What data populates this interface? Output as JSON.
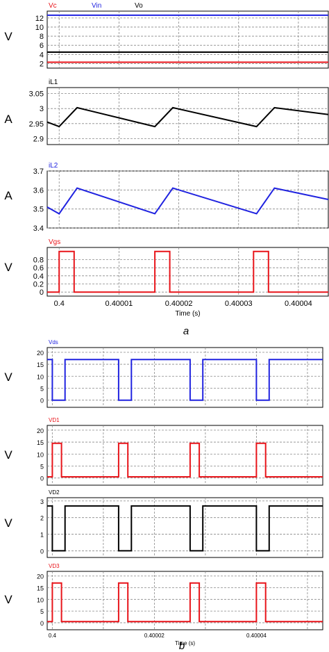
{
  "figures": [
    {
      "caption": "a"
    },
    {
      "caption": "b"
    }
  ],
  "chart_data": [
    {
      "type": "line",
      "figure": "a",
      "unit": "V",
      "xlim": [
        0.399998,
        0.400045
      ],
      "ylim": [
        1,
        13.5
      ],
      "yticks": [
        "2",
        "4",
        "6",
        "8",
        "10",
        "12"
      ],
      "series": [
        {
          "name": "Vc",
          "color": "#e8141a",
          "x": [
            0.399998,
            0.400045
          ],
          "y": [
            2.3,
            2.3
          ]
        },
        {
          "name": "Vin",
          "color": "#2023e0",
          "x": [
            0.399998,
            0.400045
          ],
          "y": [
            12.6,
            12.6
          ]
        },
        {
          "name": "Vo",
          "color": "#000000",
          "x": [
            0.399998,
            0.400045
          ],
          "y": [
            4.5,
            4.5
          ]
        }
      ]
    },
    {
      "type": "line",
      "figure": "a",
      "unit": "A",
      "xlim": [
        0.399998,
        0.400045
      ],
      "ylim": [
        2.88,
        3.07
      ],
      "yticks": [
        "2.9",
        "2.95",
        "3",
        "3.05"
      ],
      "series": [
        {
          "name": "iL1",
          "color": "#000000",
          "x": [
            0.399998,
            0.4,
            0.400003,
            0.400016,
            0.400019,
            0.400033,
            0.400036,
            0.400045
          ],
          "y": [
            2.955,
            2.94,
            3.003,
            2.94,
            3.003,
            2.94,
            3.003,
            2.98
          ]
        }
      ]
    },
    {
      "type": "line",
      "figure": "a",
      "unit": "A",
      "xlim": [
        0.399998,
        0.400045
      ],
      "ylim": [
        3.4,
        3.7
      ],
      "yticks": [
        "3.4",
        "3.5",
        "3.6",
        "3.7"
      ],
      "series": [
        {
          "name": "iL2",
          "color": "#2023e0",
          "x": [
            0.399998,
            0.4,
            0.400003,
            0.400016,
            0.400019,
            0.400033,
            0.400036,
            0.400045
          ],
          "y": [
            3.51,
            3.475,
            3.61,
            3.475,
            3.61,
            3.475,
            3.61,
            3.55
          ]
        }
      ]
    },
    {
      "type": "line",
      "figure": "a",
      "unit": "V",
      "xlim": [
        0.399998,
        0.400045
      ],
      "ylim": [
        -0.1,
        1.1
      ],
      "yticks": [
        "0",
        "0.2",
        "0.4",
        "0.6",
        "0.8"
      ],
      "xticks": [
        "0.4",
        "0.40001",
        "0.40002",
        "0.40003",
        "0.40004"
      ],
      "xtick_values": [
        0.4,
        0.40001,
        0.40002,
        0.40003,
        0.40004
      ],
      "xlabel": "Time (s)",
      "series": [
        {
          "name": "Vgs",
          "color": "#e8141a",
          "x": [
            0.399998,
            0.4,
            0.4,
            0.4000025,
            0.4000025,
            0.400016,
            0.400016,
            0.4000185,
            0.4000185,
            0.4000325,
            0.4000325,
            0.400035,
            0.400035,
            0.400045
          ],
          "y": [
            0,
            0,
            1,
            1,
            0,
            0,
            1,
            1,
            0,
            0,
            1,
            1,
            0,
            0
          ]
        }
      ]
    },
    {
      "type": "line",
      "figure": "b",
      "unit": "V",
      "xlim": [
        0.399999,
        0.400053
      ],
      "ylim": [
        -3,
        22
      ],
      "yticks": [
        "0",
        "5",
        "10",
        "15",
        "20"
      ],
      "series": [
        {
          "name": "Vds",
          "color": "#2023e0",
          "x": [
            0.399999,
            0.4,
            0.4,
            0.4000025,
            0.4000025,
            0.400013,
            0.400013,
            0.4000155,
            0.4000155,
            0.400027,
            0.400027,
            0.4000295,
            0.4000295,
            0.40004,
            0.40004,
            0.4000425,
            0.4000425,
            0.400053
          ],
          "y": [
            17,
            17,
            0,
            0,
            17,
            17,
            0,
            0,
            17,
            17,
            0,
            0,
            17,
            17,
            0,
            0,
            17,
            17
          ]
        }
      ]
    },
    {
      "type": "line",
      "figure": "b",
      "unit": "V",
      "xlim": [
        0.399999,
        0.400053
      ],
      "ylim": [
        -3,
        22
      ],
      "yticks": [
        "0",
        "5",
        "10",
        "15",
        "20"
      ],
      "series": [
        {
          "name": "VD1",
          "color": "#e8141a",
          "x": [
            0.399999,
            0.4,
            0.4,
            0.4000018,
            0.4000018,
            0.400013,
            0.400013,
            0.4000148,
            0.4000148,
            0.400027,
            0.400027,
            0.4000288,
            0.4000288,
            0.40004,
            0.40004,
            0.4000418,
            0.4000418,
            0.400053
          ],
          "y": [
            0.5,
            0.5,
            14.5,
            14.5,
            0.5,
            0.5,
            14.5,
            14.5,
            0.5,
            0.5,
            14.5,
            14.5,
            0.5,
            0.5,
            14.5,
            14.5,
            0.5,
            0.5
          ]
        }
      ]
    },
    {
      "type": "line",
      "figure": "b",
      "unit": "V",
      "xlim": [
        0.399999,
        0.400053
      ],
      "ylim": [
        -0.4,
        3.2
      ],
      "yticks": [
        "0",
        "1",
        "2",
        "3"
      ],
      "series": [
        {
          "name": "VD2",
          "color": "#000000",
          "x": [
            0.399999,
            0.4,
            0.4,
            0.4000025,
            0.4000025,
            0.400013,
            0.400013,
            0.4000155,
            0.4000155,
            0.400027,
            0.400027,
            0.4000295,
            0.4000295,
            0.40004,
            0.40004,
            0.4000425,
            0.4000425,
            0.400053
          ],
          "y": [
            2.7,
            2.7,
            0,
            0,
            2.7,
            2.7,
            0,
            0,
            2.7,
            2.7,
            0,
            0,
            2.7,
            2.7,
            0,
            0,
            2.7,
            2.7
          ]
        }
      ]
    },
    {
      "type": "line",
      "figure": "b",
      "unit": "V",
      "xlim": [
        0.399999,
        0.400053
      ],
      "ylim": [
        -3,
        22
      ],
      "yticks": [
        "0",
        "5",
        "10",
        "15",
        "20"
      ],
      "xticks": [
        "0.4",
        "0.40002",
        "0.40004"
      ],
      "xtick_values": [
        0.4,
        0.40002,
        0.40004
      ],
      "xlabel": "Time (s)",
      "series": [
        {
          "name": "VD3",
          "color": "#e8141a",
          "x": [
            0.399999,
            0.4,
            0.4,
            0.4000018,
            0.4000018,
            0.400013,
            0.400013,
            0.4000148,
            0.4000148,
            0.400027,
            0.400027,
            0.4000288,
            0.4000288,
            0.40004,
            0.40004,
            0.4000418,
            0.4000418,
            0.400053
          ],
          "y": [
            0.5,
            0.5,
            17,
            17,
            0.5,
            0.5,
            17,
            17,
            0.5,
            0.5,
            17,
            17,
            0.5,
            0.5,
            17,
            17,
            0.5,
            0.5
          ]
        }
      ]
    }
  ]
}
